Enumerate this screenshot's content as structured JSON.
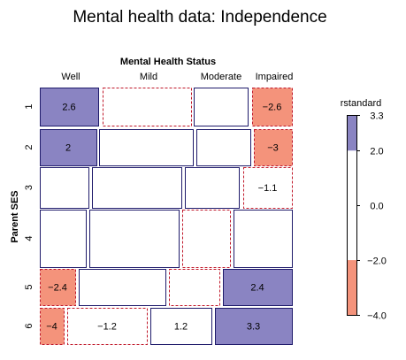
{
  "chart_data": {
    "type": "mosaic",
    "title": "Mental health data: Independence",
    "col_variable": "Mental Health Status",
    "row_variable": "Parent SES",
    "columns": [
      "Well",
      "Mild",
      "Moderate",
      "Impaired"
    ],
    "rows": [
      "1",
      "2",
      "3",
      "4",
      "5",
      "6"
    ],
    "cells": [
      {
        "row": "1",
        "col": "Well",
        "residual": 2.6,
        "label": "2.6"
      },
      {
        "row": "1",
        "col": "Mild",
        "residual": -0.4,
        "label": ""
      },
      {
        "row": "1",
        "col": "Moderate",
        "residual": 0.5,
        "label": ""
      },
      {
        "row": "1",
        "col": "Impaired",
        "residual": -2.6,
        "label": "−2.6"
      },
      {
        "row": "2",
        "col": "Well",
        "residual": 2.0,
        "label": "2"
      },
      {
        "row": "2",
        "col": "Mild",
        "residual": 0.8,
        "label": ""
      },
      {
        "row": "2",
        "col": "Moderate",
        "residual": 0.6,
        "label": ""
      },
      {
        "row": "2",
        "col": "Impaired",
        "residual": -3.0,
        "label": "−3"
      },
      {
        "row": "3",
        "col": "Well",
        "residual": 0.3,
        "label": ""
      },
      {
        "row": "3",
        "col": "Mild",
        "residual": 0.9,
        "label": ""
      },
      {
        "row": "3",
        "col": "Moderate",
        "residual": 0.1,
        "label": ""
      },
      {
        "row": "3",
        "col": "Impaired",
        "residual": -1.1,
        "label": "−1.1"
      },
      {
        "row": "4",
        "col": "Well",
        "residual": 0.2,
        "label": ""
      },
      {
        "row": "4",
        "col": "Mild",
        "residual": 0.7,
        "label": ""
      },
      {
        "row": "4",
        "col": "Moderate",
        "residual": -0.3,
        "label": ""
      },
      {
        "row": "4",
        "col": "Impaired",
        "residual": 0.4,
        "label": ""
      },
      {
        "row": "5",
        "col": "Well",
        "residual": -2.4,
        "label": "−2.4"
      },
      {
        "row": "5",
        "col": "Mild",
        "residual": 0.5,
        "label": ""
      },
      {
        "row": "5",
        "col": "Moderate",
        "residual": -0.6,
        "label": ""
      },
      {
        "row": "5",
        "col": "Impaired",
        "residual": 2.4,
        "label": "2.4"
      },
      {
        "row": "6",
        "col": "Well",
        "residual": -4.0,
        "label": "−4"
      },
      {
        "row": "6",
        "col": "Mild",
        "residual": -1.2,
        "label": "−1.2"
      },
      {
        "row": "6",
        "col": "Moderate",
        "residual": 1.2,
        "label": "1.2"
      },
      {
        "row": "6",
        "col": "Impaired",
        "residual": 3.3,
        "label": "3.3"
      }
    ],
    "legend": {
      "title": "rstandard",
      "position": "right",
      "range": [
        -4.0,
        3.3
      ],
      "ticks": [
        {
          "value": 3.3,
          "label": "3.3"
        },
        {
          "value": 2.0,
          "label": "2.0"
        },
        {
          "value": 0.0,
          "label": "0.0"
        },
        {
          "value": -2.0,
          "label": "−2.0"
        },
        {
          "value": -4.0,
          "label": "−4.0"
        }
      ],
      "positive_color": "#8a84c2",
      "negative_color": "#f4937b",
      "neutral_color": "#ffffff"
    },
    "colors": {
      "positive_border": "#1f1b6b",
      "negative_border": "#c0182a"
    }
  }
}
